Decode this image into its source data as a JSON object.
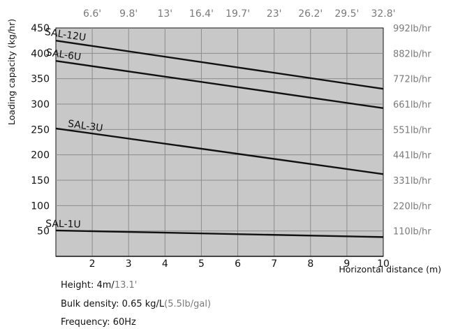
{
  "colors": {
    "plot_bg": "#c8c8c8",
    "grid": "#8c8c8c",
    "line": "#111111",
    "text": "#111111",
    "secondary_text": "#7a7a7a"
  },
  "chart_data": {
    "type": "line",
    "x_label": "Horizontal distance (m)",
    "y_label": "Loading capacity (kg/hr)",
    "xlim": [
      1,
      10
    ],
    "ylim": [
      0,
      450
    ],
    "x_ticks": [
      {
        "value": 2,
        "label": "2"
      },
      {
        "value": 3,
        "label": "3"
      },
      {
        "value": 4,
        "label": "4"
      },
      {
        "value": 5,
        "label": "5"
      },
      {
        "value": 6,
        "label": "6"
      },
      {
        "value": 7,
        "label": "7"
      },
      {
        "value": 8,
        "label": "8"
      },
      {
        "value": 9,
        "label": "9"
      },
      {
        "value": 10,
        "label": "10"
      }
    ],
    "y_ticks": [
      {
        "value": 50,
        "label": "50"
      },
      {
        "value": 100,
        "label": "100"
      },
      {
        "value": 150,
        "label": "150"
      },
      {
        "value": 200,
        "label": "200"
      },
      {
        "value": 250,
        "label": "250"
      },
      {
        "value": 300,
        "label": "300"
      },
      {
        "value": 350,
        "label": "350"
      },
      {
        "value": 400,
        "label": "400"
      },
      {
        "value": 450,
        "label": "450"
      }
    ],
    "top_axis_ticks": [
      {
        "value": 2,
        "label": "6.6'"
      },
      {
        "value": 3,
        "label": "9.8'"
      },
      {
        "value": 4,
        "label": "13'"
      },
      {
        "value": 5,
        "label": "16.4'"
      },
      {
        "value": 6,
        "label": "19.7'"
      },
      {
        "value": 7,
        "label": "23'"
      },
      {
        "value": 8,
        "label": "26.2'"
      },
      {
        "value": 9,
        "label": "29.5'"
      },
      {
        "value": 10,
        "label": "32.8'"
      }
    ],
    "right_axis_ticks": [
      {
        "value": 450,
        "label": "992lb/hr"
      },
      {
        "value": 400,
        "label": "882lb/hr"
      },
      {
        "value": 350,
        "label": "772lb/hr"
      },
      {
        "value": 300,
        "label": "661lb/hr"
      },
      {
        "value": 250,
        "label": "551lb/hr"
      },
      {
        "value": 200,
        "label": "441lb/hr"
      },
      {
        "value": 150,
        "label": "331lb/hr"
      },
      {
        "value": 100,
        "label": "220lb/hr"
      },
      {
        "value": 50,
        "label": "110lb/hr"
      }
    ],
    "grid": true,
    "series": [
      {
        "name": "SAL-12U",
        "x": [
          1,
          10
        ],
        "y": [
          425,
          330
        ]
      },
      {
        "name": "SAL-6U",
        "x": [
          1,
          10
        ],
        "y": [
          385,
          292
        ]
      },
      {
        "name": "SAL-3U",
        "x": [
          1,
          10
        ],
        "y": [
          252,
          162
        ]
      },
      {
        "name": "SAL-1U",
        "x": [
          1,
          10
        ],
        "y": [
          51,
          38
        ]
      }
    ]
  },
  "notes": [
    {
      "main": "Height: 4m/",
      "secondary": "13.1'"
    },
    {
      "main": "Bulk density: 0.65 kg/L",
      "secondary": "(5.5lb/gal)"
    },
    {
      "main": "Frequency: 60Hz",
      "secondary": ""
    }
  ]
}
